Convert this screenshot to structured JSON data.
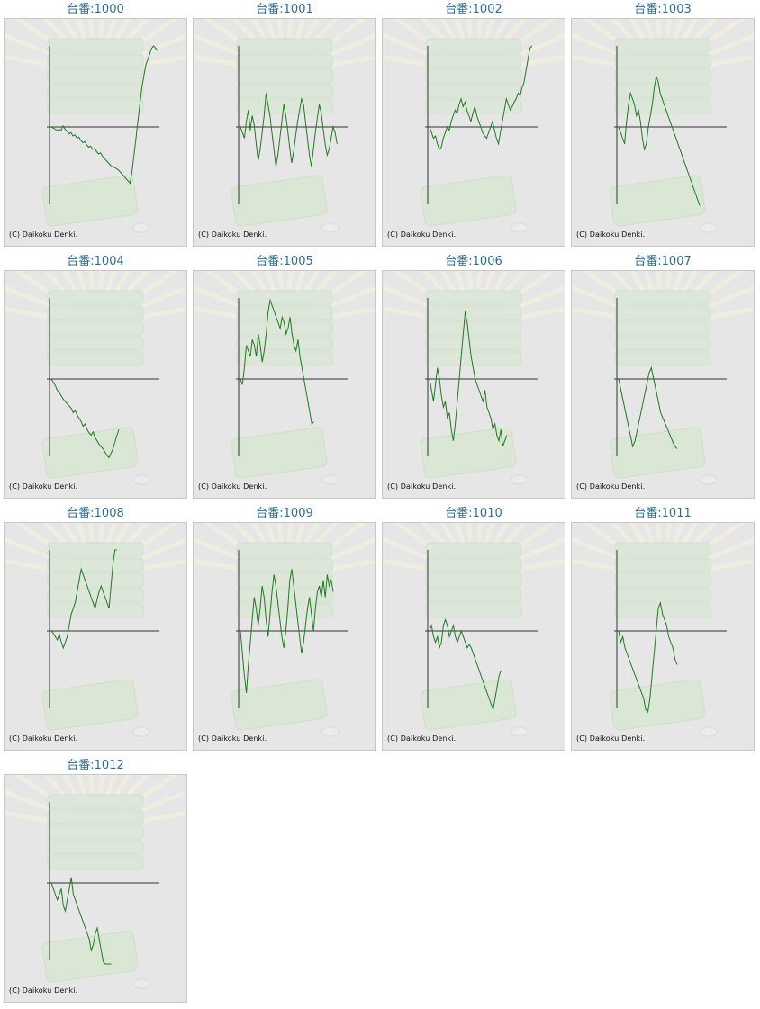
{
  "copyright": "(C) Daikoku Denki.",
  "palette": {
    "line": "#1f7a1f",
    "axis": "#333333",
    "label": "#2a6f96",
    "bg": "#e6e6e6"
  },
  "chart_data": [
    {
      "type": "line",
      "title": "台番:1000",
      "y": [
        0,
        -1,
        -2,
        -3,
        -2,
        -3,
        1,
        -2,
        -4,
        -6,
        -5,
        -8,
        -7,
        -10,
        -9,
        -12,
        -14,
        -13,
        -16,
        -18,
        -17,
        -20,
        -19,
        -22,
        -24,
        -23,
        -26,
        -28,
        -30,
        -32,
        -34,
        -35,
        -36,
        -37,
        -38,
        -40,
        -42,
        -44,
        -46,
        -48,
        -50,
        -40,
        -25,
        -10,
        5,
        20,
        35,
        45,
        55,
        60,
        65,
        70,
        72,
        70,
        68
      ]
    },
    {
      "type": "line",
      "title": "台番:1001",
      "y": [
        0,
        -5,
        -10,
        5,
        15,
        -3,
        10,
        2,
        -15,
        -30,
        -20,
        -5,
        10,
        30,
        20,
        10,
        -5,
        -20,
        -35,
        -25,
        -10,
        5,
        20,
        10,
        -3,
        -18,
        -32,
        -22,
        -8,
        5,
        15,
        25,
        20,
        5,
        -10,
        -25,
        -35,
        -20,
        -5,
        8,
        20,
        12,
        -2,
        -15,
        -25,
        -20,
        -10,
        0,
        -5,
        -15
      ]
    },
    {
      "type": "line",
      "title": "台番:1002",
      "y": [
        0,
        -5,
        -10,
        -8,
        -15,
        -20,
        -18,
        -10,
        -5,
        0,
        -3,
        5,
        10,
        15,
        12,
        20,
        25,
        18,
        22,
        15,
        10,
        5,
        12,
        18,
        10,
        5,
        0,
        -5,
        -8,
        -10,
        -5,
        0,
        5,
        -3,
        -10,
        -15,
        -5,
        5,
        15,
        25,
        20,
        15,
        18,
        22,
        25,
        30,
        28,
        35,
        40,
        50,
        60,
        70,
        80
      ]
    },
    {
      "type": "line",
      "title": "台番:1003",
      "y": [
        0,
        -5,
        -10,
        -15,
        5,
        20,
        30,
        25,
        20,
        10,
        15,
        5,
        -10,
        -20,
        -15,
        0,
        10,
        20,
        35,
        45,
        40,
        30,
        25,
        20,
        15,
        10,
        5,
        0,
        -5,
        -10,
        -15,
        -20,
        -25,
        -30,
        -35,
        -40,
        -45,
        -50,
        -55,
        -60,
        -65,
        -70
      ]
    },
    {
      "type": "line",
      "title": "台番:1004",
      "y": [
        0,
        -3,
        -6,
        -10,
        -12,
        -15,
        -18,
        -20,
        -22,
        -24,
        -26,
        -30,
        -28,
        -32,
        -35,
        -38,
        -42,
        -40,
        -45,
        -48,
        -50,
        -47,
        -52,
        -55,
        -58,
        -60,
        -62,
        -65,
        -68,
        -70,
        -66,
        -62,
        -56,
        -50,
        -45
      ]
    },
    {
      "type": "line",
      "title": "台番:1005",
      "y": [
        0,
        -5,
        10,
        30,
        25,
        20,
        35,
        30,
        20,
        40,
        30,
        15,
        25,
        40,
        60,
        70,
        65,
        60,
        55,
        50,
        45,
        55,
        50,
        40,
        45,
        55,
        40,
        30,
        25,
        35,
        20,
        10,
        0,
        -10,
        -20,
        -30,
        -40,
        -38
      ]
    },
    {
      "type": "line",
      "title": "台番:1006",
      "y": [
        0,
        -10,
        -20,
        -5,
        10,
        0,
        -15,
        -25,
        -20,
        -35,
        -30,
        -45,
        -55,
        -40,
        -20,
        0,
        20,
        40,
        60,
        50,
        35,
        20,
        10,
        0,
        -5,
        -10,
        -15,
        -20,
        -10,
        -25,
        -30,
        -35,
        -45,
        -40,
        -50,
        -55,
        -45,
        -60,
        -55,
        -50
      ]
    },
    {
      "type": "line",
      "title": "台番:1007",
      "y": [
        0,
        -10,
        -20,
        -30,
        -40,
        -50,
        -60,
        -55,
        -45,
        -35,
        -25,
        -15,
        -5,
        5,
        10,
        0,
        -10,
        -20,
        -30,
        -35,
        -40,
        -45,
        -50,
        -55,
        -60,
        -62
      ]
    },
    {
      "type": "line",
      "title": "台番:1008",
      "y": [
        0,
        -2,
        -5,
        -8,
        -3,
        -10,
        -15,
        -10,
        -5,
        5,
        15,
        20,
        25,
        35,
        45,
        55,
        50,
        45,
        40,
        35,
        30,
        25,
        20,
        28,
        35,
        40,
        35,
        30,
        25,
        20,
        40,
        60,
        80,
        90
      ]
    },
    {
      "type": "line",
      "title": "台番:1009",
      "y": [
        0,
        -20,
        -40,
        -55,
        -30,
        -10,
        10,
        30,
        20,
        5,
        20,
        40,
        30,
        10,
        -5,
        15,
        35,
        50,
        40,
        25,
        10,
        -5,
        -15,
        0,
        20,
        45,
        55,
        40,
        25,
        10,
        -5,
        -20,
        -10,
        5,
        20,
        30,
        15,
        0,
        20,
        35,
        40,
        30,
        45,
        30,
        50,
        40,
        45,
        35
      ]
    },
    {
      "type": "line",
      "title": "台番:1010",
      "y": [
        0,
        5,
        -5,
        -10,
        -5,
        -15,
        -10,
        5,
        10,
        5,
        -5,
        0,
        5,
        -5,
        -10,
        -5,
        0,
        -5,
        -10,
        -15,
        -12,
        -15,
        -20,
        -25,
        -30,
        -35,
        -40,
        -45,
        -50,
        -55,
        -60,
        -65,
        -70,
        -60,
        -50,
        -40,
        -35
      ]
    },
    {
      "type": "line",
      "title": "台番:1011",
      "y": [
        0,
        -10,
        -5,
        -15,
        -20,
        -25,
        -30,
        -35,
        -40,
        -45,
        -50,
        -55,
        -60,
        -70,
        -80,
        -60,
        -40,
        -20,
        0,
        20,
        25,
        15,
        10,
        5,
        -5,
        -10,
        -15,
        -25,
        -30
      ]
    },
    {
      "type": "line",
      "title": "台番:1012",
      "y": [
        0,
        -5,
        -10,
        -15,
        -10,
        -5,
        -20,
        -25,
        -15,
        -5,
        5,
        -10,
        -15,
        -20,
        -25,
        -30,
        -35,
        -40,
        -45,
        -50,
        -60,
        -55,
        -45,
        -40,
        -50,
        -60,
        -70,
        -75,
        -80,
        -85,
        -90
      ]
    }
  ]
}
